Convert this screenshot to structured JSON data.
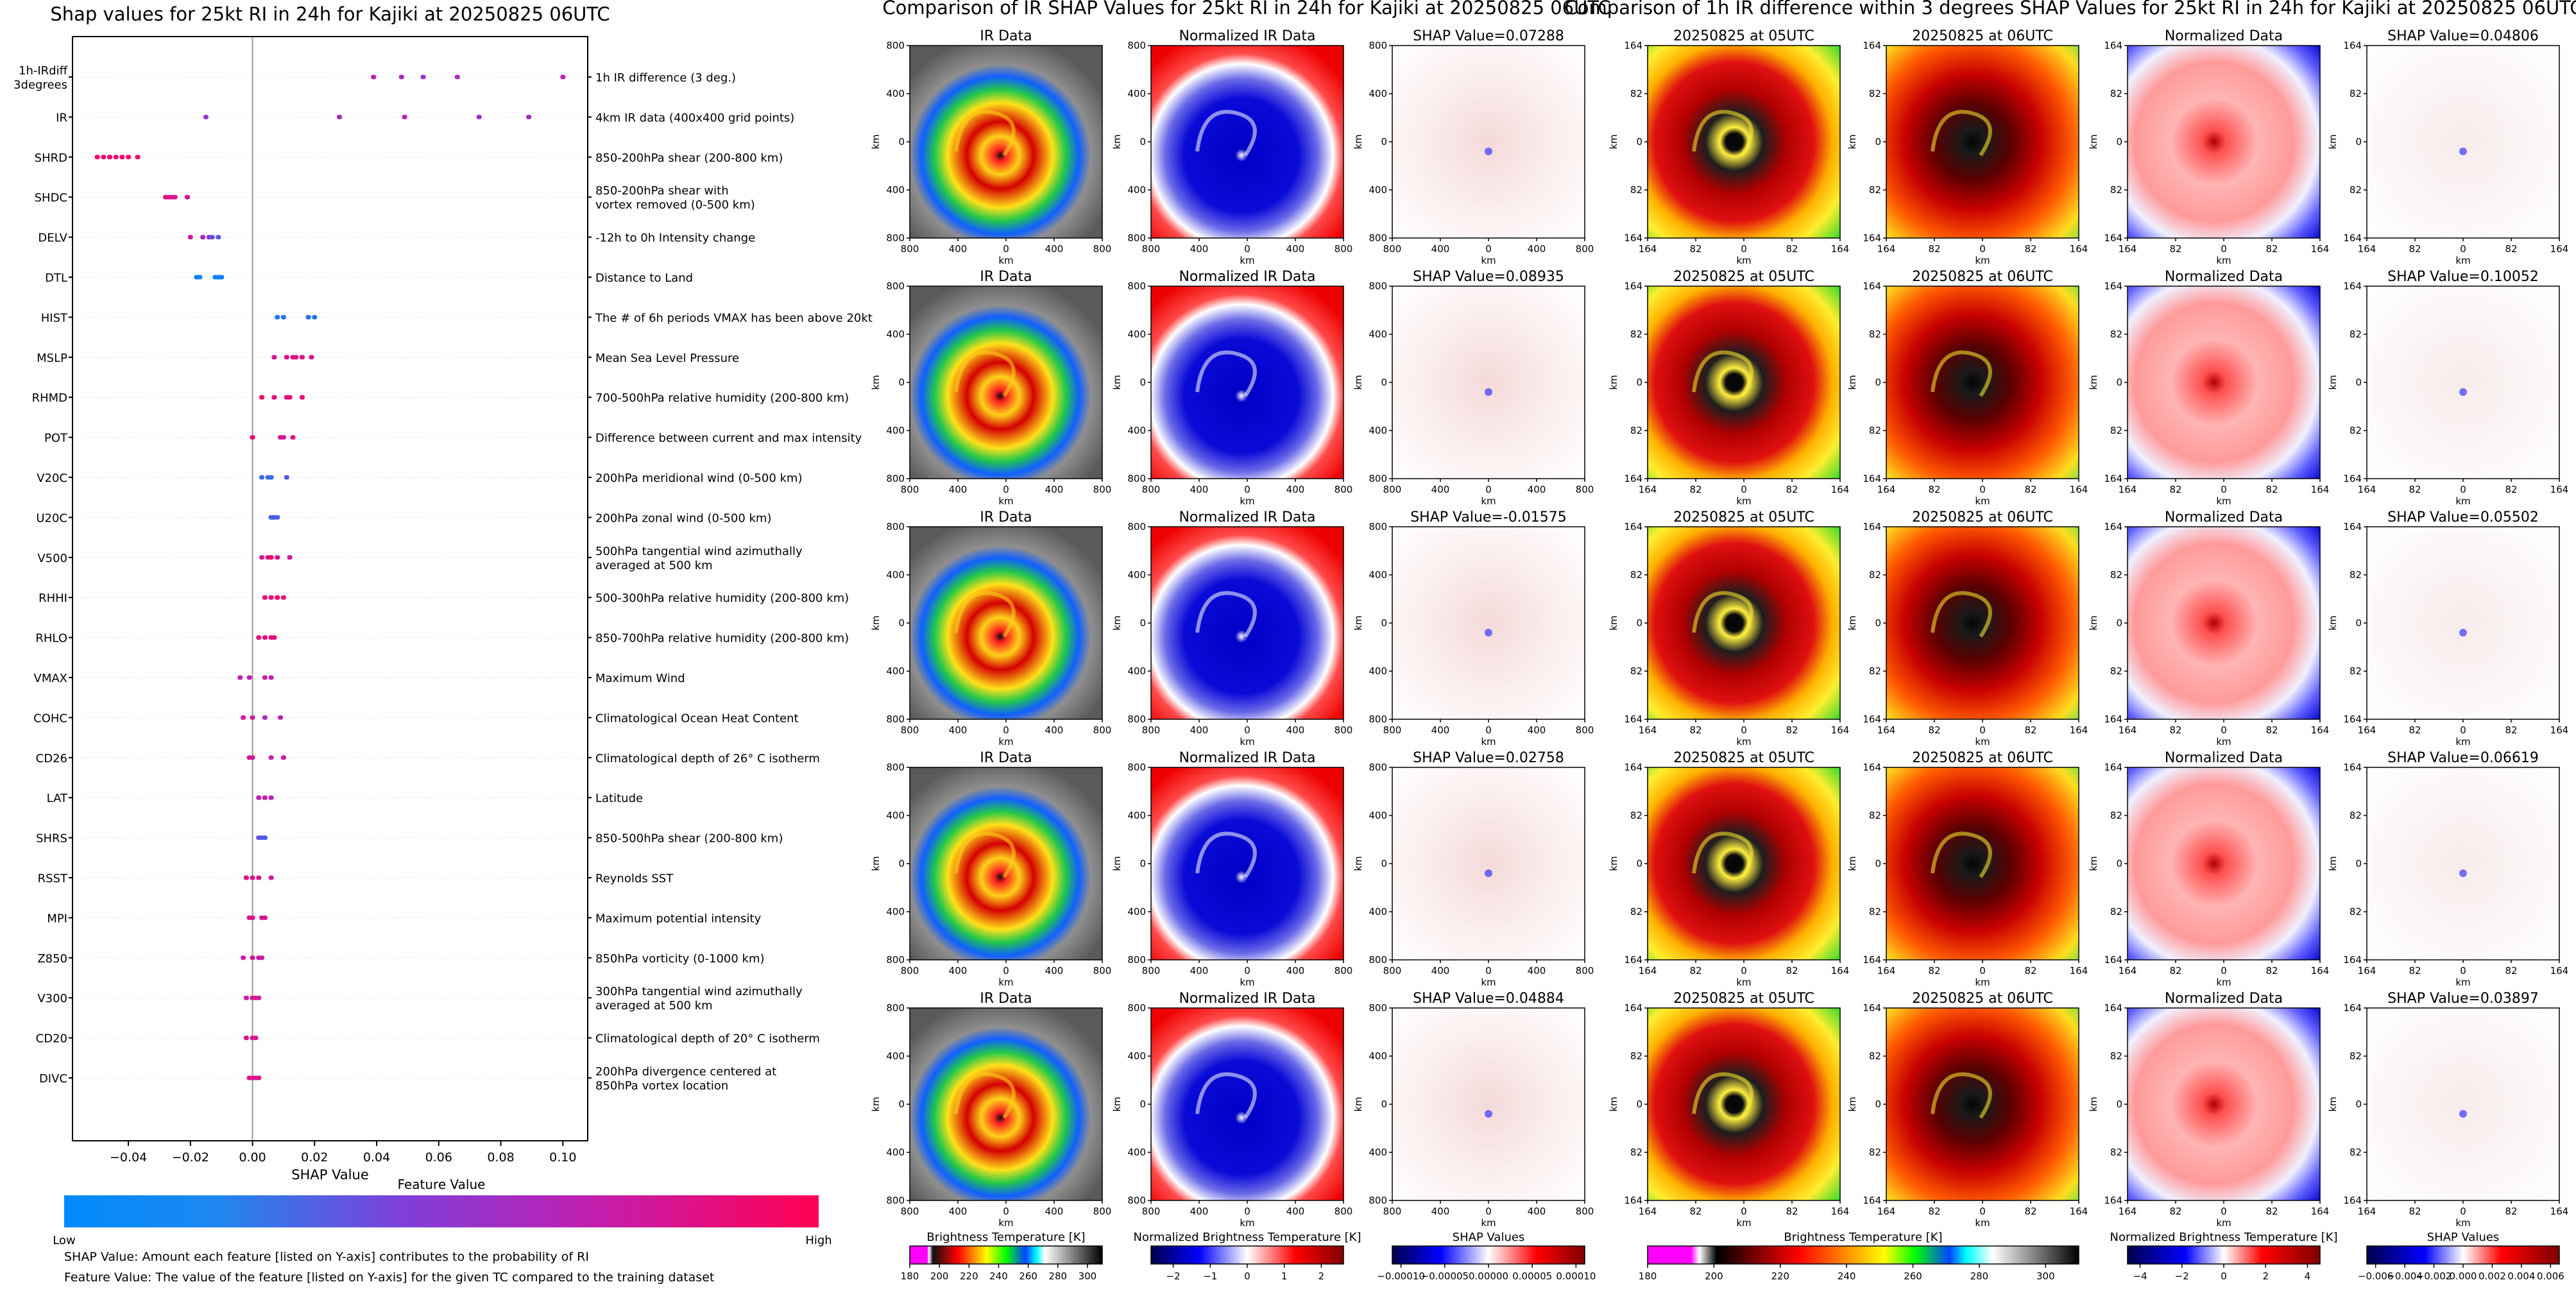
{
  "chart_data": [
    {
      "type": "scatter",
      "title": "Shap values for 25kt RI in 24h for Kajiki at 20250825 06UTC",
      "xlabel": "SHAP Value",
      "xlim": [
        -0.058,
        0.108
      ],
      "xticks": [
        -0.04,
        -0.02,
        0.0,
        0.02,
        0.04,
        0.06,
        0.08,
        0.1
      ],
      "xtick_labels": [
        "−0.04",
        "−0.02",
        "0.00",
        "0.02",
        "0.04",
        "0.06",
        "0.08",
        "0.10"
      ],
      "colorbar_title": "Feature Value",
      "colorbar_low": "Low",
      "colorbar_high": "High",
      "notes": [
        "SHAP Value: Amount each feature [listed on Y-axis] contributes to the probability of RI",
        "Feature Value: The value of the feature [listed on Y-axis] for the given TC compared to the training dataset"
      ],
      "features": [
        {
          "name": [
            "1h-IRdiff",
            "3degrees"
          ],
          "desc": [
            "1h IR difference (3 deg.)"
          ],
          "values": [
            0.039,
            0.048,
            0.055,
            0.066,
            0.1
          ],
          "fv": [
            0.7,
            0.6,
            0.55,
            0.6,
            0.65
          ]
        },
        {
          "name": [
            "IR"
          ],
          "desc": [
            "4km IR data (400x400 grid points)"
          ],
          "values": [
            -0.015,
            0.028,
            0.049,
            0.073,
            0.089
          ],
          "fv": [
            0.5,
            0.6,
            0.65,
            0.55,
            0.6
          ]
        },
        {
          "name": [
            "SHRD"
          ],
          "desc": [
            "850-200hPa shear (200-800 km)"
          ],
          "values": [
            -0.05,
            -0.048,
            -0.046,
            -0.044,
            -0.042,
            -0.04,
            -0.037
          ],
          "fv": [
            0.93,
            0.9,
            0.92,
            0.88,
            0.91,
            0.9,
            0.92
          ]
        },
        {
          "name": [
            "SHDC"
          ],
          "desc": [
            "850-200hPa shear with",
            "vortex removed (0-500 km)"
          ],
          "values": [
            -0.028,
            -0.027,
            -0.026,
            -0.025,
            -0.021
          ],
          "fv": [
            0.85,
            0.82,
            0.84,
            0.8,
            0.83
          ]
        },
        {
          "name": [
            "DELV"
          ],
          "desc": [
            "-12h to 0h Intensity change"
          ],
          "values": [
            -0.02,
            -0.016,
            -0.014,
            -0.013,
            -0.011
          ],
          "fv": [
            0.75,
            0.6,
            0.45,
            0.4,
            0.3
          ]
        },
        {
          "name": [
            "DTL"
          ],
          "desc": [
            "Distance to Land"
          ],
          "values": [
            -0.018,
            -0.017,
            -0.012,
            -0.011,
            -0.01
          ],
          "fv": [
            0.04,
            0.05,
            0.06,
            0.05,
            0.04
          ]
        },
        {
          "name": [
            "HIST"
          ],
          "desc": [
            "The # of 6h periods VMAX has been above 20kt"
          ],
          "values": [
            0.008,
            0.01,
            0.018,
            0.02
          ],
          "fv": [
            0.1,
            0.12,
            0.15,
            0.12
          ]
        },
        {
          "name": [
            "MSLP"
          ],
          "desc": [
            "Mean Sea Level Pressure"
          ],
          "values": [
            0.007,
            0.011,
            0.013,
            0.014,
            0.016,
            0.019
          ],
          "fv": [
            0.8,
            0.85,
            0.82,
            0.86,
            0.84,
            0.8
          ]
        },
        {
          "name": [
            "RHMD"
          ],
          "desc": [
            "700-500hPa relative humidity (200-800 km)"
          ],
          "values": [
            0.003,
            0.007,
            0.011,
            0.012,
            0.016
          ],
          "fv": [
            0.95,
            0.9,
            0.85,
            0.9,
            0.88
          ]
        },
        {
          "name": [
            "POT"
          ],
          "desc": [
            "Difference between current and max intensity"
          ],
          "values": [
            0.0,
            0.009,
            0.01,
            0.013
          ],
          "fv": [
            0.9,
            0.8,
            0.75,
            0.82
          ]
        },
        {
          "name": [
            "V20C"
          ],
          "desc": [
            "200hPa meridional wind (0-500 km)"
          ],
          "values": [
            0.003,
            0.005,
            0.006,
            0.011
          ],
          "fv": [
            0.2,
            0.25,
            0.15,
            0.3
          ]
        },
        {
          "name": [
            "U20C"
          ],
          "desc": [
            "200hPa zonal wind (0-500 km)"
          ],
          "values": [
            0.006,
            0.0065,
            0.007,
            0.008
          ],
          "fv": [
            0.2,
            0.25,
            0.3,
            0.22
          ]
        },
        {
          "name": [
            "V500"
          ],
          "desc": [
            "500hPa tangential wind azimuthally",
            "averaged at 500 km"
          ],
          "values": [
            0.003,
            0.005,
            0.006,
            0.008,
            0.012
          ],
          "fv": [
            0.8,
            0.85,
            0.9,
            0.82,
            0.78
          ]
        },
        {
          "name": [
            "RHHI"
          ],
          "desc": [
            "500-300hPa relative humidity (200-800 km)"
          ],
          "values": [
            0.004,
            0.006,
            0.008,
            0.01
          ],
          "fv": [
            0.9,
            0.88,
            0.92,
            0.85
          ]
        },
        {
          "name": [
            "RHLO"
          ],
          "desc": [
            "850-700hPa relative humidity (200-800 km)"
          ],
          "values": [
            0.002,
            0.004,
            0.006,
            0.007
          ],
          "fv": [
            0.85,
            0.88,
            0.9,
            0.86
          ]
        },
        {
          "name": [
            "VMAX"
          ],
          "desc": [
            "Maximum Wind"
          ],
          "values": [
            -0.004,
            -0.001,
            0.004,
            0.006
          ],
          "fv": [
            0.7,
            0.65,
            0.75,
            0.7
          ]
        },
        {
          "name": [
            "COHC"
          ],
          "desc": [
            "Climatological Ocean Heat Content"
          ],
          "values": [
            -0.003,
            0.0,
            0.004,
            0.009
          ],
          "fv": [
            0.75,
            0.7,
            0.6,
            0.7
          ]
        },
        {
          "name": [
            "CD26"
          ],
          "desc": [
            "Climatological depth of 26° C isotherm"
          ],
          "values": [
            -0.001,
            0.0,
            0.006,
            0.01
          ],
          "fv": [
            0.8,
            0.75,
            0.7,
            0.78
          ]
        },
        {
          "name": [
            "LAT"
          ],
          "desc": [
            "Latitude"
          ],
          "values": [
            0.002,
            0.004,
            0.006
          ],
          "fv": [
            0.7,
            0.75,
            0.65
          ]
        },
        {
          "name": [
            "SHRS"
          ],
          "desc": [
            "850-500hPa shear (200-800 km)"
          ],
          "values": [
            0.002,
            0.003,
            0.004
          ],
          "fv": [
            0.3,
            0.35,
            0.25
          ]
        },
        {
          "name": [
            "RSST"
          ],
          "desc": [
            "Reynolds SST"
          ],
          "values": [
            -0.002,
            0.0,
            0.002,
            0.006
          ],
          "fv": [
            0.85,
            0.8,
            0.82,
            0.75
          ]
        },
        {
          "name": [
            "MPI"
          ],
          "desc": [
            "Maximum potential intensity"
          ],
          "values": [
            -0.001,
            0.0,
            0.003,
            0.004
          ],
          "fv": [
            0.8,
            0.82,
            0.78,
            0.8
          ]
        },
        {
          "name": [
            "Z850"
          ],
          "desc": [
            "850hPa vorticity (0-1000 km)"
          ],
          "values": [
            -0.003,
            0.0,
            0.002,
            0.003
          ],
          "fv": [
            0.7,
            0.75,
            0.72,
            0.7
          ]
        },
        {
          "name": [
            "V300"
          ],
          "desc": [
            "300hPa tangential wind azimuthally",
            "averaged at 500 km"
          ],
          "values": [
            -0.002,
            0.0,
            0.001,
            0.002
          ],
          "fv": [
            0.75,
            0.8,
            0.78,
            0.76
          ]
        },
        {
          "name": [
            "CD20"
          ],
          "desc": [
            "Climatological depth of 20° C isotherm"
          ],
          "values": [
            -0.002,
            0.0,
            0.001
          ],
          "fv": [
            0.8,
            0.78,
            0.82
          ]
        },
        {
          "name": [
            "DIVC"
          ],
          "desc": [
            "200hPa divergence centered at",
            "850hPa vortex location"
          ],
          "values": [
            -0.001,
            0.0,
            0.001,
            0.002
          ],
          "fv": [
            0.85,
            0.82,
            0.8,
            0.84
          ]
        }
      ]
    },
    {
      "type": "heatmap",
      "title": "Comparison of IR SHAP Values for 25kt RI in 24h for Kajiki at 20250825 06UTC",
      "columns": [
        "IR Data",
        "Normalized IR Data",
        "SHAP"
      ],
      "shap_values": [
        "SHAP Value=0.07288",
        "SHAP Value=0.08935",
        "SHAP Value=-0.01575",
        "SHAP Value=0.02758",
        "SHAP Value=0.04884"
      ],
      "axis_unit": "km",
      "y_tick_labels": [
        "800",
        "400",
        "0",
        "400",
        "800"
      ],
      "x_tick_labels": [
        "800",
        "400",
        "0",
        "400",
        "800"
      ],
      "colorbars": [
        {
          "label": "Brightness Temperature [K]",
          "ticks": [
            "180",
            "200",
            "220",
            "240",
            "260",
            "280",
            "300"
          ],
          "range": [
            180,
            310
          ]
        },
        {
          "label": "Normalized Brightness Temperature [K]",
          "ticks": [
            "−2",
            "−1",
            "0",
            "1",
            "2"
          ],
          "range": [
            -2.6,
            2.6
          ]
        },
        {
          "label": "SHAP Values",
          "ticks": [
            "−0.00010",
            "−0.00005",
            "0.00000",
            "0.00005",
            "0.00010"
          ],
          "range": [
            -0.00011,
            0.00011
          ]
        }
      ]
    },
    {
      "type": "heatmap",
      "title": "Comparison of 1h IR difference within 3 degrees SHAP Values for 25kt RI in 24h for Kajiki at 20250825 06UTC",
      "columns": [
        "20250825 at 05UTC",
        "20250825 at 06UTC",
        "Normalized Data",
        "SHAP"
      ],
      "shap_values": [
        "SHAP Value=0.04806",
        "SHAP Value=0.10052",
        "SHAP Value=0.05502",
        "SHAP Value=0.06619",
        "SHAP Value=0.03897"
      ],
      "axis_unit": "km",
      "y_tick_labels": [
        "164",
        "82",
        "0",
        "82",
        "164"
      ],
      "x_tick_labels": [
        "164",
        "82",
        "0",
        "82",
        "164"
      ],
      "colorbars": [
        {
          "label": "Brightness Temperature [K]",
          "ticks": [
            "180",
            "200",
            "220",
            "240",
            "260",
            "280",
            "300"
          ],
          "range": [
            180,
            310
          ]
        },
        {
          "label": "Normalized Brightness Temperature [K]",
          "ticks": [
            "−4",
            "−2",
            "0",
            "2",
            "4"
          ],
          "range": [
            -4.6,
            4.6
          ]
        },
        {
          "label": "SHAP Values",
          "ticks": [
            "−0.006",
            "−0.004",
            "−0.002",
            "0.000",
            "0.002",
            "0.004",
            "0.006"
          ],
          "range": [
            -0.0066,
            0.0066
          ]
        }
      ]
    }
  ]
}
